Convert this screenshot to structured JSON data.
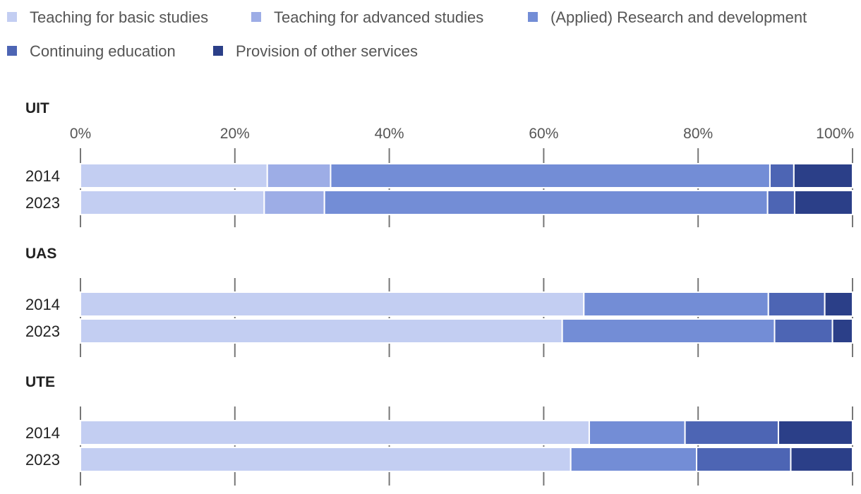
{
  "chart_data": {
    "type": "bar",
    "orientation": "horizontal",
    "stacked": "percent",
    "xlim": [
      0,
      100
    ],
    "x_ticks": [
      "0%",
      "20%",
      "40%",
      "60%",
      "80%",
      "100%"
    ],
    "legend_position": "top",
    "categories_per_group": [
      "2014",
      "2023"
    ],
    "series": [
      {
        "name": "Teaching for basic studies",
        "color": "#c3cef2"
      },
      {
        "name": "Teaching for advanced studies",
        "color": "#9dade6"
      },
      {
        "name": "(Applied) Research and development",
        "color": "#738dd6"
      },
      {
        "name": "Continuing education",
        "color": "#4d65b4"
      },
      {
        "name": "Provision of other services",
        "color": "#2b3f88"
      }
    ],
    "groups": [
      {
        "name": "UIT",
        "rows": [
          {
            "year": "2014",
            "values": [
              24.2,
              8.2,
              56.9,
              3.1,
              7.6
            ]
          },
          {
            "year": "2023",
            "values": [
              23.8,
              7.8,
              57.4,
              3.5,
              7.5
            ]
          }
        ]
      },
      {
        "name": "UAS",
        "rows": [
          {
            "year": "2014",
            "values": [
              65.2,
              0,
              23.9,
              7.3,
              3.6
            ]
          },
          {
            "year": "2023",
            "values": [
              62.4,
              0,
              27.5,
              7.5,
              2.6
            ]
          }
        ]
      },
      {
        "name": "UTE",
        "rows": [
          {
            "year": "2014",
            "values": [
              65.9,
              0,
              12.4,
              12.1,
              9.6
            ]
          },
          {
            "year": "2023",
            "values": [
              63.5,
              0,
              16.3,
              12.2,
              8.0
            ]
          }
        ]
      }
    ]
  }
}
